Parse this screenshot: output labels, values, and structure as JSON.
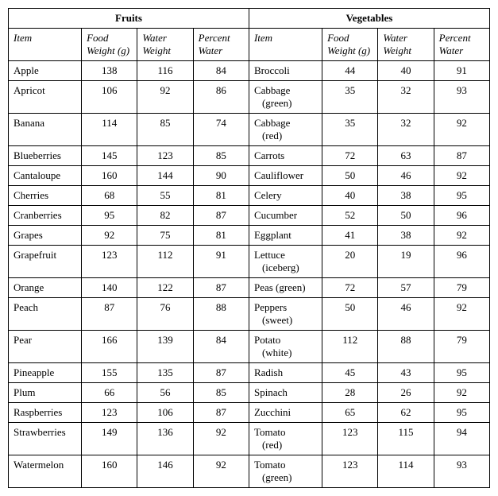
{
  "headers": {
    "fruits": "Fruits",
    "vegetables": "Vegetables",
    "item": "Item",
    "food_weight": "Food Weight (g)",
    "water_weight": "Water Weight",
    "percent_water": "Percent Water"
  },
  "fruits": [
    {
      "name": "Apple",
      "food": 138,
      "water": 116,
      "pct": 84
    },
    {
      "name": "Apricot",
      "food": 106,
      "water": 92,
      "pct": 86
    },
    {
      "name": "Banana",
      "food": 114,
      "water": 85,
      "pct": 74
    },
    {
      "name": "Blueberries",
      "food": 145,
      "water": 123,
      "pct": 85
    },
    {
      "name": "Cantaloupe",
      "food": 160,
      "water": 144,
      "pct": 90
    },
    {
      "name": "Cherries",
      "food": 68,
      "water": 55,
      "pct": 81
    },
    {
      "name": "Cranberries",
      "food": 95,
      "water": 82,
      "pct": 87
    },
    {
      "name": "Grapes",
      "food": 92,
      "water": 75,
      "pct": 81
    },
    {
      "name": "Grapefruit",
      "food": 123,
      "water": 112,
      "pct": 91
    },
    {
      "name": "Orange",
      "food": 140,
      "water": 122,
      "pct": 87
    },
    {
      "name": "Peach",
      "food": 87,
      "water": 76,
      "pct": 88
    },
    {
      "name": "Pear",
      "food": 166,
      "water": 139,
      "pct": 84
    },
    {
      "name": "Pineapple",
      "food": 155,
      "water": 135,
      "pct": 87
    },
    {
      "name": "Plum",
      "food": 66,
      "water": 56,
      "pct": 85
    },
    {
      "name": "Raspberries",
      "food": 123,
      "water": 106,
      "pct": 87
    },
    {
      "name": "Strawberries",
      "food": 149,
      "water": 136,
      "pct": 92
    },
    {
      "name": "Watermelon",
      "food": 160,
      "water": 146,
      "pct": 92
    }
  ],
  "vegetables": [
    {
      "name": "Broccoli",
      "food": 44,
      "water": 40,
      "pct": 91
    },
    {
      "name": "Cabbage",
      "sub": "(green)",
      "food": 35,
      "water": 32,
      "pct": 93
    },
    {
      "name": "Cabbage",
      "sub": "(red)",
      "food": 35,
      "water": 32,
      "pct": 92
    },
    {
      "name": "Carrots",
      "food": 72,
      "water": 63,
      "pct": 87
    },
    {
      "name": "Cauliflower",
      "food": 50,
      "water": 46,
      "pct": 92
    },
    {
      "name": "Celery",
      "food": 40,
      "water": 38,
      "pct": 95
    },
    {
      "name": "Cucumber",
      "food": 52,
      "water": 50,
      "pct": 96
    },
    {
      "name": "Eggplant",
      "food": 41,
      "water": 38,
      "pct": 92
    },
    {
      "name": "Lettuce",
      "sub": "(iceberg)",
      "food": 20,
      "water": 19,
      "pct": 96
    },
    {
      "name": "Peas (green)",
      "food": 72,
      "water": 57,
      "pct": 79
    },
    {
      "name": "Peppers",
      "sub": "(sweet)",
      "food": 50,
      "water": 46,
      "pct": 92
    },
    {
      "name": "Potato",
      "sub": "(white)",
      "food": 112,
      "water": 88,
      "pct": 79
    },
    {
      "name": "Radish",
      "food": 45,
      "water": 43,
      "pct": 95
    },
    {
      "name": "Spinach",
      "food": 28,
      "water": 26,
      "pct": 92
    },
    {
      "name": "Zucchini",
      "food": 65,
      "water": 62,
      "pct": 95
    },
    {
      "name": "Tomato",
      "sub": "(red)",
      "food": 123,
      "water": 115,
      "pct": 94
    },
    {
      "name": "Tomato",
      "sub": "(green)",
      "food": 123,
      "water": 114,
      "pct": 93
    }
  ]
}
